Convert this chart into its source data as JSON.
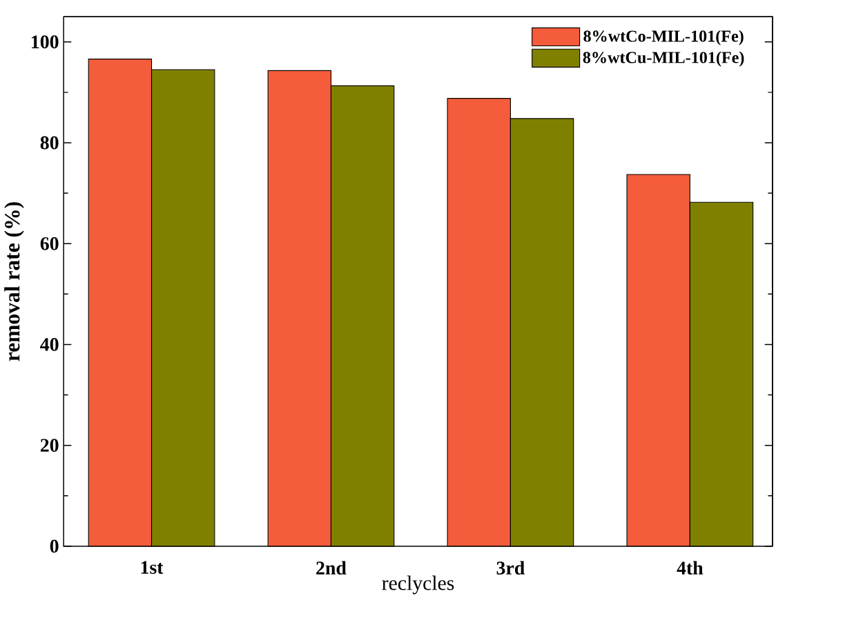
{
  "chart_data": {
    "type": "bar",
    "xlabel": "reclycles",
    "ylabel": "removal rate (%)",
    "categories": [
      "1st",
      "2nd",
      "3rd",
      "4th"
    ],
    "series": [
      {
        "name": "8%wtCo-MIL-101(Fe)",
        "color": "#f45c3c",
        "values": [
          96.6,
          94.3,
          88.8,
          73.7
        ]
      },
      {
        "name": "8%wtCu-MIL-101(Fe)",
        "color": "#808000",
        "values": [
          94.5,
          91.3,
          84.8,
          68.2
        ]
      }
    ],
    "ylim": [
      0,
      105
    ],
    "yticks": [
      0,
      20,
      40,
      60,
      80,
      100
    ],
    "grid": false,
    "legend": "top right"
  }
}
